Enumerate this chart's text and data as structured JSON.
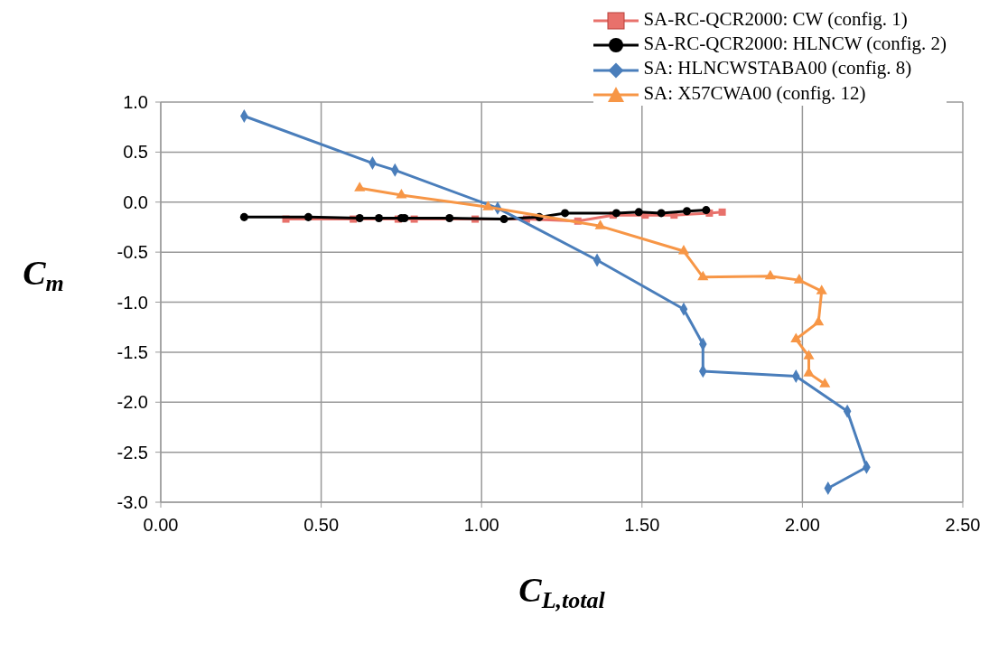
{
  "chart_data": {
    "type": "line",
    "xlabel": "C$_{L,total}$",
    "ylabel": "C$_{m}$",
    "xlim": [
      0,
      2.5
    ],
    "xticks": [
      {
        "value": 0,
        "label": "0.00"
      },
      {
        "value": 0.5,
        "label": "0.50"
      },
      {
        "value": 1,
        "label": "1.00"
      },
      {
        "value": 1.5,
        "label": "1.50"
      },
      {
        "value": 2,
        "label": "2.00"
      },
      {
        "value": 2.5,
        "label": "2.50"
      }
    ],
    "ylim": [
      -3,
      1
    ],
    "yticks": [
      {
        "value": -3,
        "label": "-3.0"
      },
      {
        "value": -2.5,
        "label": "-2.5"
      },
      {
        "value": -2,
        "label": "-2.0"
      },
      {
        "value": -1.5,
        "label": "-1.5"
      },
      {
        "value": -1,
        "label": "-1.0"
      },
      {
        "value": -0.5,
        "label": "-0.5"
      },
      {
        "value": 0,
        "label": "0.0"
      },
      {
        "value": 0.5,
        "label": "0.5"
      },
      {
        "value": 1,
        "label": "1.0"
      }
    ],
    "grid": true,
    "legend": "top right",
    "line_style": "solid",
    "series": [
      {
        "name": "SA-RC-QCR2000:  CW (config. 1)",
        "color": "#e8716b",
        "marker": "square",
        "x": [
          0.39,
          0.6,
          0.74,
          0.79,
          0.98,
          1.14,
          1.3,
          1.41,
          1.51,
          1.6,
          1.71,
          1.75
        ],
        "values": [
          -0.17,
          -0.17,
          -0.17,
          -0.17,
          -0.17,
          -0.17,
          -0.19,
          -0.13,
          -0.13,
          -0.13,
          -0.11,
          -0.1
        ]
      },
      {
        "name": "SA-RC-QCR2000:  HLNCW (config. 2)",
        "color": "#000000",
        "marker": "circle",
        "x": [
          0.26,
          0.46,
          0.62,
          0.68,
          0.75,
          0.76,
          0.9,
          1.07,
          1.18,
          1.26,
          1.42,
          1.49,
          1.56,
          1.64,
          1.7
        ],
        "values": [
          -0.15,
          -0.15,
          -0.16,
          -0.16,
          -0.16,
          -0.16,
          -0.16,
          -0.17,
          -0.15,
          -0.11,
          -0.11,
          -0.1,
          -0.11,
          -0.09,
          -0.08
        ]
      },
      {
        "name": "SA:  HLNCWSTABA00 (config. 8)",
        "color": "#4a7ebb",
        "marker": "diamond",
        "x": [
          0.26,
          0.66,
          0.73,
          1.05,
          1.36,
          1.63,
          1.69,
          1.69,
          1.98,
          2.14,
          2.2,
          2.08
        ],
        "values": [
          0.86,
          0.39,
          0.32,
          -0.06,
          -0.58,
          -1.07,
          -1.42,
          -1.69,
          -1.74,
          -2.09,
          -2.65,
          -2.86
        ]
      },
      {
        "name": "SA:  X57CWA00 (config. 12)",
        "color": "#f79646",
        "marker": "triangle",
        "x": [
          0.62,
          0.75,
          1.02,
          1.37,
          1.63,
          1.69,
          1.9,
          1.99,
          2.06,
          2.05,
          1.98,
          2.02,
          2.02,
          2.07
        ],
        "values": [
          0.14,
          0.07,
          -0.05,
          -0.24,
          -0.49,
          -0.75,
          -0.74,
          -0.78,
          -0.89,
          -1.2,
          -1.37,
          -1.54,
          -1.71,
          -1.82
        ]
      }
    ]
  }
}
